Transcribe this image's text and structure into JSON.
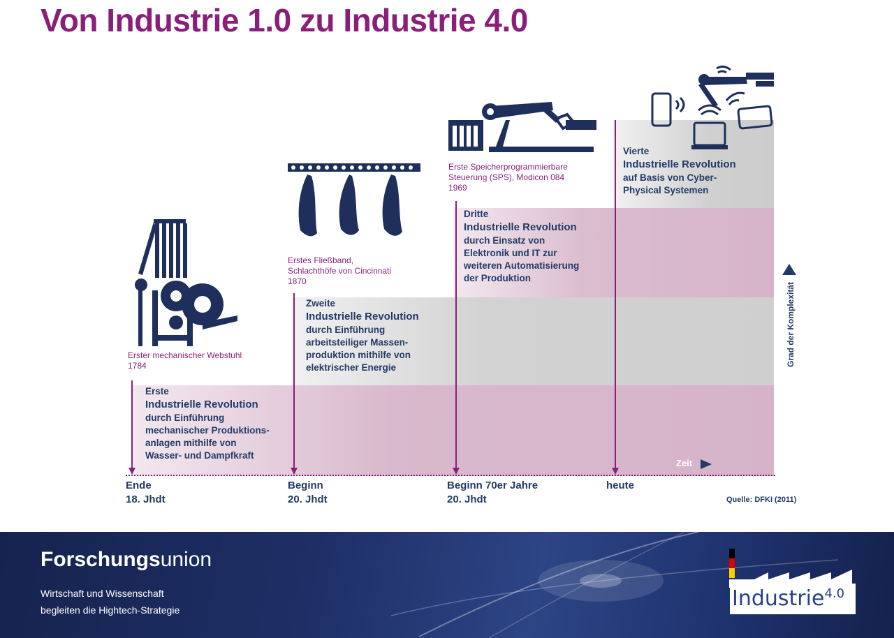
{
  "title": "Von Industrie 1.0 zu Industrie 4.0",
  "colors": {
    "accent": "#8a1f7a",
    "text": "#233a66",
    "gray_band": "#cfcfcf",
    "pink_band": "#d6b3c9",
    "footer": "#1e2f66"
  },
  "revolutions": [
    {
      "invention": "Erster mechanischer Webstuhl",
      "year": "1784",
      "label": "Erste",
      "heading": "Industrielle Revolution",
      "lines": [
        "durch Einführung",
        "mechanischer Produktions-",
        "anlagen mithilfe von",
        "Wasser- und Dampfkraft"
      ],
      "time_a": "Ende",
      "time_b": "18. Jhdt",
      "icon": "loom-icon"
    },
    {
      "invention_1": "Erstes Fließband,",
      "invention_2": "Schlachthöfe von Cincinnati",
      "year": "1870",
      "label": "Zweite",
      "heading": "Industrielle Revolution",
      "lines": [
        "durch Einführung",
        "arbeitsteiliger Massen-",
        "produktion mithilfe von",
        "elektrischer Energie"
      ],
      "time_a": "Beginn",
      "time_b": "20. Jhdt",
      "icon": "assembly-line-icon"
    },
    {
      "invention_1": "Erste Speicherprogrammierbare",
      "invention_2": "Steuerung (SPS), Modicon 084",
      "year": "1969",
      "label": "Dritte",
      "heading": "Industrielle Revolution",
      "lines": [
        "durch Einsatz von",
        "Elektronik und IT zur",
        "weiteren Automatisierung",
        "der Produktion"
      ],
      "time_a": "Beginn 70er Jahre",
      "time_b": "20. Jhdt",
      "icon": "robot-arm-icon"
    },
    {
      "label": "Vierte",
      "heading": "Industrielle Revolution",
      "lines": [
        "auf Basis von Cyber-",
        "Physical Systemen"
      ],
      "time_a": "heute",
      "icon": "connected-devices-icon"
    }
  ],
  "y_axis": "Grad der Komplexität",
  "x_axis": "Zeit",
  "source": "Quelle: DFKI (2011)",
  "footer": {
    "brand_bold": "Forschungs",
    "brand_rest": "union",
    "sub_1": "Wirtschaft und Wissenschaft",
    "sub_2": "begleiten die Hightech-Strategie",
    "logo": "Industrie",
    "logo_sup": "4.0"
  }
}
